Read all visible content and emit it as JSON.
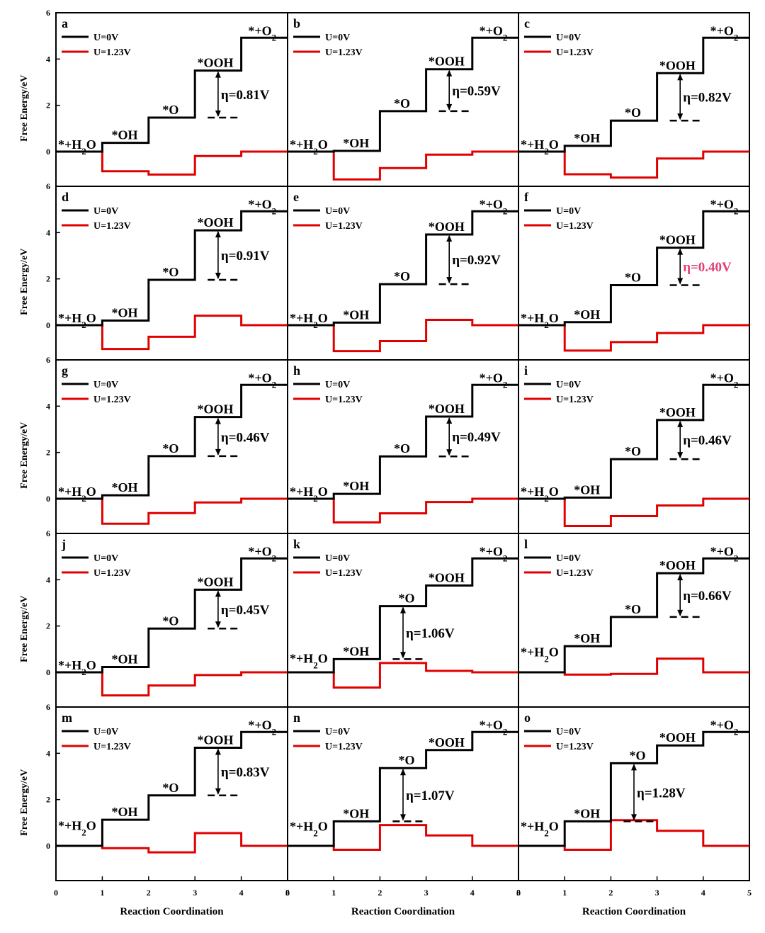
{
  "figure": {
    "ylabel": "Free Energy/eV",
    "xlabel": "Reaction Coordination",
    "y_ticks": [
      "0",
      "2",
      "4",
      "6"
    ],
    "x_ticks": [
      "0",
      "1",
      "2",
      "3",
      "4",
      "5"
    ],
    "legend": [
      "U=0V",
      "U=1.23V"
    ],
    "colors": {
      "u0": "#000000",
      "u123": "#e00000",
      "highlight": "#e0407a"
    }
  },
  "chart_data": [
    {
      "type": "line",
      "panel": "a",
      "levels_u0": [
        0,
        0.38,
        1.47,
        3.5,
        4.92
      ],
      "levels_u123": [
        0,
        -0.85,
        -0.99,
        -0.19,
        0
      ],
      "overpotential": "η=0.81V",
      "eta_step": 3,
      "highlight": false,
      "xlim": [
        0,
        5
      ],
      "ylim": [
        -1.5,
        6
      ],
      "species": [
        "*+H2O",
        "*OH",
        "*O",
        "*OOH",
        "*+O2"
      ]
    },
    {
      "type": "line",
      "panel": "b",
      "levels_u0": [
        0,
        0.03,
        1.75,
        3.56,
        4.92
      ],
      "levels_u123": [
        0,
        -1.2,
        -0.71,
        -0.13,
        0
      ],
      "overpotential": "η=0.59V",
      "eta_step": 3,
      "highlight": false,
      "xlim": [
        0,
        5
      ],
      "ylim": [
        -1.5,
        6
      ],
      "species": [
        "*+H2O",
        "*OH",
        "*O",
        "*OOH",
        "*+O2"
      ]
    },
    {
      "type": "line",
      "panel": "c",
      "levels_u0": [
        0,
        0.25,
        1.34,
        3.39,
        4.92
      ],
      "levels_u123": [
        0,
        -0.98,
        -1.12,
        -0.3,
        0
      ],
      "overpotential": "η=0.82V",
      "eta_step": 3,
      "highlight": false,
      "xlim": [
        0,
        5
      ],
      "ylim": [
        -1.5,
        6
      ],
      "species": [
        "*+H2O",
        "*OH",
        "*O",
        "*OOH",
        "*+O2"
      ]
    },
    {
      "type": "line",
      "panel": "d",
      "levels_u0": [
        0,
        0.2,
        1.96,
        4.1,
        4.92
      ],
      "levels_u123": [
        0,
        -1.03,
        -0.5,
        0.41,
        0
      ],
      "overpotential": "η=0.91V",
      "eta_step": 3,
      "highlight": false,
      "xlim": [
        0,
        5
      ],
      "ylim": [
        -1.5,
        6
      ],
      "species": [
        "*+H2O",
        "*OH",
        "*O",
        "*OOH",
        "*+O2"
      ]
    },
    {
      "type": "line",
      "panel": "e",
      "levels_u0": [
        0,
        0.11,
        1.77,
        3.92,
        4.92
      ],
      "levels_u123": [
        0,
        -1.12,
        -0.69,
        0.23,
        0
      ],
      "overpotential": "η=0.92V",
      "eta_step": 3,
      "highlight": false,
      "xlim": [
        0,
        5
      ],
      "ylim": [
        -1.5,
        6
      ],
      "species": [
        "*+H2O",
        "*OH",
        "*O",
        "*OOH",
        "*+O2"
      ]
    },
    {
      "type": "line",
      "panel": "f",
      "levels_u0": [
        0,
        0.13,
        1.73,
        3.35,
        4.92
      ],
      "levels_u123": [
        0,
        -1.1,
        -0.73,
        -0.34,
        0
      ],
      "overpotential": "η=0.40V",
      "eta_step": 3,
      "highlight": true,
      "xlim": [
        0,
        5
      ],
      "ylim": [
        -1.5,
        6
      ],
      "species": [
        "*+H2O",
        "*OH",
        "*O",
        "*OOH",
        "*+O2"
      ]
    },
    {
      "type": "line",
      "panel": "g",
      "levels_u0": [
        0,
        0.15,
        1.84,
        3.53,
        4.92
      ],
      "levels_u123": [
        0,
        -1.08,
        -0.62,
        -0.16,
        0
      ],
      "overpotential": "η=0.46V",
      "eta_step": 3,
      "highlight": false,
      "xlim": [
        0,
        5
      ],
      "ylim": [
        -1.5,
        6
      ],
      "species": [
        "*+H2O",
        "*OH",
        "*O",
        "*OOH",
        "*+O2"
      ]
    },
    {
      "type": "line",
      "panel": "h",
      "levels_u0": [
        0,
        0.21,
        1.83,
        3.55,
        4.92
      ],
      "levels_u123": [
        0,
        -1.02,
        -0.63,
        -0.14,
        0
      ],
      "overpotential": "η=0.49V",
      "eta_step": 3,
      "highlight": false,
      "xlim": [
        0,
        5
      ],
      "ylim": [
        -1.5,
        6
      ],
      "species": [
        "*+H2O",
        "*OH",
        "*O",
        "*OOH",
        "*+O2"
      ]
    },
    {
      "type": "line",
      "panel": "i",
      "levels_u0": [
        0,
        0.05,
        1.71,
        3.4,
        4.92
      ],
      "levels_u123": [
        0,
        -1.18,
        -0.75,
        -0.29,
        0
      ],
      "overpotential": "η=0.46V",
      "eta_step": 3,
      "highlight": false,
      "xlim": [
        0,
        5
      ],
      "ylim": [
        -1.5,
        6
      ],
      "species": [
        "*+H2O",
        "*OH",
        "*O",
        "*OOH",
        "*+O2"
      ]
    },
    {
      "type": "line",
      "panel": "j",
      "levels_u0": [
        0,
        0.23,
        1.89,
        3.57,
        4.92
      ],
      "levels_u123": [
        0,
        -1.0,
        -0.57,
        -0.12,
        0
      ],
      "overpotential": "η=0.45V",
      "eta_step": 3,
      "highlight": false,
      "xlim": [
        0,
        5
      ],
      "ylim": [
        -1.5,
        6
      ],
      "species": [
        "*+H2O",
        "*OH",
        "*O",
        "*OOH",
        "*+O2"
      ]
    },
    {
      "type": "line",
      "panel": "k",
      "levels_u0": [
        0,
        0.57,
        2.86,
        3.75,
        4.92
      ],
      "levels_u123": [
        0,
        -0.66,
        0.4,
        0.06,
        0
      ],
      "overpotential": "η=1.06V",
      "eta_step": 2,
      "highlight": false,
      "xlim": [
        0,
        5
      ],
      "ylim": [
        -1.5,
        6
      ],
      "species": [
        "*+H2O",
        "*OH",
        "*O",
        "*OOH",
        "*+O2"
      ]
    },
    {
      "type": "line",
      "panel": "l",
      "levels_u0": [
        0,
        1.13,
        2.39,
        4.28,
        4.92
      ],
      "levels_u123": [
        0,
        -0.1,
        -0.07,
        0.59,
        0
      ],
      "overpotential": "η=0.66V",
      "eta_step": 3,
      "highlight": false,
      "xlim": [
        0,
        5
      ],
      "ylim": [
        -1.5,
        6
      ],
      "species": [
        "*+H2O",
        "*OH",
        "*O",
        "*OOH",
        "*+O2"
      ]
    },
    {
      "type": "line",
      "panel": "m",
      "levels_u0": [
        0,
        1.13,
        2.18,
        4.24,
        4.92
      ],
      "levels_u123": [
        0,
        -0.1,
        -0.28,
        0.55,
        0
      ],
      "overpotential": "η=0.83V",
      "eta_step": 3,
      "highlight": false,
      "xlim": [
        0,
        5
      ],
      "ylim": [
        -1.5,
        6
      ],
      "species": [
        "*+H2O",
        "*OH",
        "*O",
        "*OOH",
        "*+O2"
      ]
    },
    {
      "type": "line",
      "panel": "n",
      "levels_u0": [
        0,
        1.06,
        3.36,
        4.14,
        4.92
      ],
      "levels_u123": [
        0,
        -0.17,
        0.9,
        0.45,
        0
      ],
      "overpotential": "η=1.07V",
      "eta_step": 2,
      "highlight": false,
      "xlim": [
        0,
        5
      ],
      "ylim": [
        -1.5,
        6
      ],
      "species": [
        "*+H2O",
        "*OH",
        "*O",
        "*OOH",
        "*+O2"
      ]
    },
    {
      "type": "line",
      "panel": "o",
      "levels_u0": [
        0,
        1.06,
        3.57,
        4.34,
        4.92
      ],
      "levels_u123": [
        0,
        -0.17,
        1.11,
        0.65,
        0
      ],
      "overpotential": "η=1.28V",
      "eta_step": 2,
      "highlight": false,
      "xlim": [
        0,
        5
      ],
      "ylim": [
        -1.5,
        6
      ],
      "species": [
        "*+H2O",
        "*OH",
        "*O",
        "*OOH",
        "*+O2"
      ]
    }
  ]
}
